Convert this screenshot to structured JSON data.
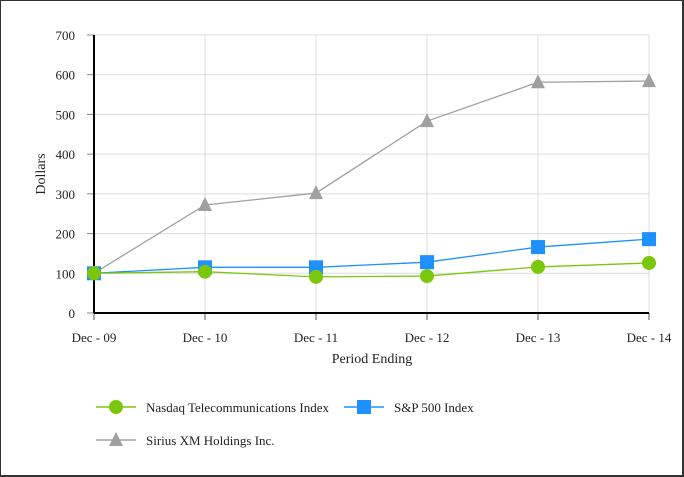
{
  "chart_data": {
    "type": "line",
    "title": "",
    "xlabel": "Period Ending",
    "ylabel": "Dollars",
    "ylim": [
      0,
      700
    ],
    "yticks": [
      0,
      100,
      200,
      300,
      400,
      500,
      600,
      700
    ],
    "grid": true,
    "legend_position": "bottom-left",
    "categories": [
      "Dec - 09",
      "Dec - 10",
      "Dec - 11",
      "Dec - 12",
      "Dec - 13",
      "Dec - 14"
    ],
    "series": [
      {
        "name": "Nasdaq Telecommunications Index",
        "marker": "circle",
        "color": "#7ac70c",
        "values": [
          100,
          104,
          91,
          93,
          116,
          126
        ]
      },
      {
        "name": "S&P 500 Index",
        "marker": "square",
        "color": "#1e90ff",
        "values": [
          100,
          115,
          115,
          128,
          166,
          186
        ]
      },
      {
        "name": "Sirius XM Holdings Inc.",
        "marker": "triangle",
        "color": "#a0a0a0",
        "values": [
          100,
          272,
          302,
          483,
          581,
          584
        ]
      }
    ]
  }
}
